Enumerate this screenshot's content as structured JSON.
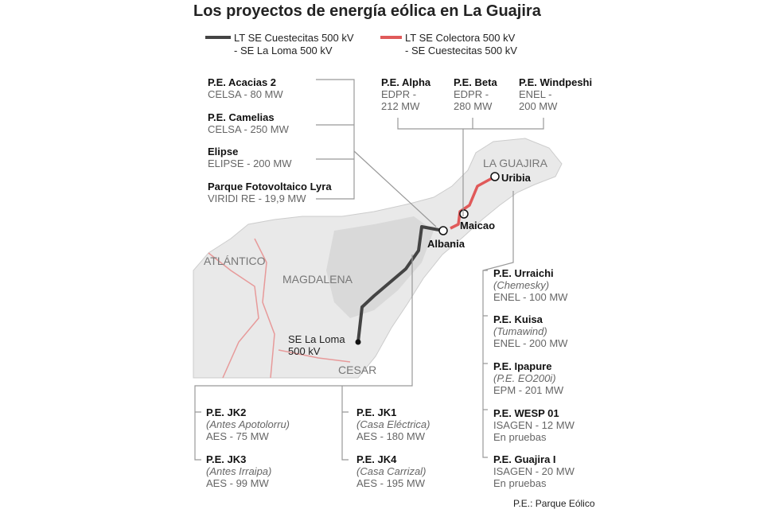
{
  "title": "Los proyectos de energía eólica en La Guajira",
  "legend": [
    {
      "lines": [
        "LT SE Cuestecitas 500 kV",
        "- SE La Loma 500 kV"
      ]
    },
    {
      "lines": [
        "LT SE Colectora 500 kV",
        "- SE Cuestecitas 500 kV"
      ]
    }
  ],
  "projects": [
    {
      "name": "P.E. Acacias 2",
      "details": [
        "CELSA - 80 MW"
      ]
    },
    {
      "name": "P.E. Camelias",
      "details": [
        "CELSA - 250 MW"
      ]
    },
    {
      "name": "Elipse",
      "details": [
        "ELIPSE - 200 MW"
      ]
    },
    {
      "name": "Parque Fotovoltaico Lyra",
      "details": [
        "VIRIDI RE - 19,9 MW"
      ]
    },
    {
      "name": "P.E. Alpha",
      "details": [
        "EDPR -",
        "212 MW"
      ]
    },
    {
      "name": "P.E. Beta",
      "details": [
        "EDPR -",
        "280 MW"
      ]
    },
    {
      "name": "P.E. Windpeshi",
      "details": [
        "ENEL -",
        "200 MW"
      ]
    },
    {
      "name": "P.E. Urraichi",
      "alias": "(Chemesky)",
      "details": [
        "ENEL - 100 MW"
      ]
    },
    {
      "name": "P.E. Kuisa",
      "alias": "(Tumawind)",
      "details": [
        "ENEL - 200 MW"
      ]
    },
    {
      "name": "P.E. Ipapure",
      "alias": "(P.E. EO200i)",
      "details": [
        "EPM - 201 MW"
      ]
    },
    {
      "name": "P.E. WESP 01",
      "details": [
        "ISAGEN - 12 MW",
        "En pruebas"
      ]
    },
    {
      "name": "P.E. Guajira I",
      "details": [
        "ISAGEN - 20 MW",
        "En pruebas"
      ]
    },
    {
      "name": "P.E. JK2",
      "alias": "(Antes Apotolorru)",
      "details": [
        "AES - 75 MW"
      ]
    },
    {
      "name": "P.E. JK3",
      "alias": "(Antes Irraipa)",
      "details": [
        "AES - 99 MW"
      ]
    },
    {
      "name": "P.E. JK1",
      "alias": "(Casa Eléctrica)",
      "details": [
        "AES - 180 MW"
      ]
    },
    {
      "name": "P.E. JK4",
      "alias": "(Casa Carrizal)",
      "details": [
        "AES - 195 MW"
      ]
    }
  ],
  "regions": [
    "LA GUAJIRA",
    "ATLÁNTICO",
    "MAGDALENA",
    "CESAR"
  ],
  "places": [
    "Uribia",
    "Maicao",
    "Albania",
    "SE La Loma",
    "500 kV"
  ],
  "footnote": "P.E.: Parque Eólico"
}
